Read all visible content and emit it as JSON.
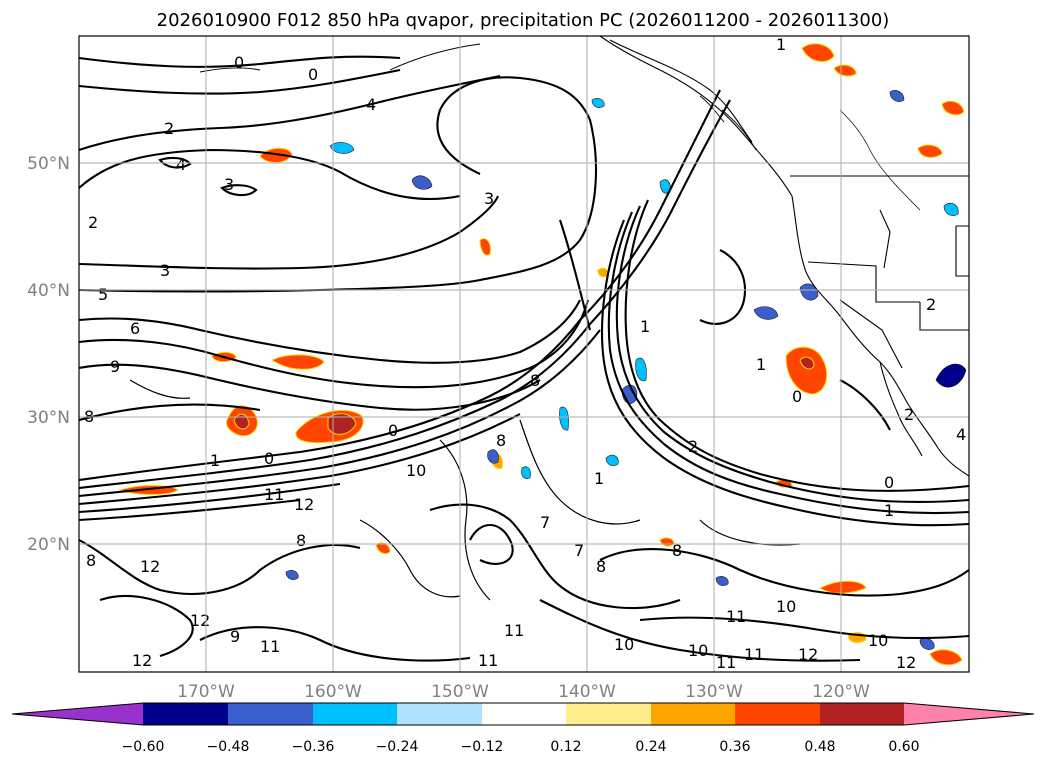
{
  "title": "2026010900 F012 850 hPa qvapor, precipitation PC (2026011200 - 2026011300)",
  "latitude_labels": [
    "50°N",
    "40°N",
    "30°N",
    "20°N"
  ],
  "longitude_labels": [
    "170°W",
    "160°W",
    "150°W",
    "140°W",
    "130°W",
    "120°W"
  ],
  "colorbar": {
    "ticks": [
      "−0.60",
      "−0.48",
      "−0.36",
      "−0.24",
      "−0.12",
      "0.12",
      "0.24",
      "0.36",
      "0.48",
      "0.60"
    ],
    "colors": [
      "#9932CC",
      "#00008B",
      "#3A5FCD",
      "#00BFFF",
      "#B0E2FF",
      "#FFFFFF",
      "#FFEC8B",
      "#FFA500",
      "#FF4500",
      "#B22222",
      "#FF82AB"
    ]
  },
  "contour_labels": [
    "0",
    "1",
    "2",
    "3",
    "4",
    "5",
    "6",
    "7",
    "8",
    "9",
    "10",
    "11",
    "12"
  ],
  "colors": {
    "contour": "#000000",
    "grid": "#b0b0b0",
    "coast": "#000000"
  }
}
